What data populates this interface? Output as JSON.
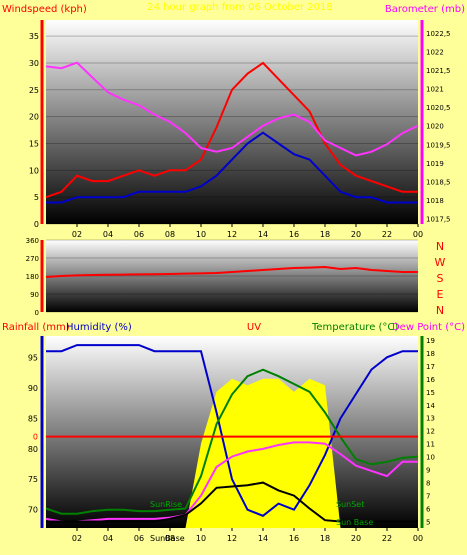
{
  "colors": {
    "background": "#ffff99",
    "red": "#ff0000",
    "blue": "#0000cc",
    "magenta": "#ff33ff",
    "green": "#008000",
    "black": "#000000",
    "yellow": "#ffff00",
    "title": "#ffff00",
    "axis_text": "#000000"
  },
  "chart_data": [
    {
      "type": "line",
      "title": "24 hour graph from 06 October 2018",
      "ylabel_left": "Windspeed (kph)",
      "ylabel_right": "Barometer (mb)",
      "x_ticks": [
        "02",
        "04",
        "06",
        "08",
        "10",
        "12",
        "14",
        "16",
        "18",
        "20",
        "22",
        "00"
      ],
      "y_ticks_left": [
        "0",
        "5",
        "10",
        "15",
        "20",
        "25",
        "30",
        "35"
      ],
      "y_ticks_right": [
        "1017,5",
        "1018",
        "1018,5",
        "1019",
        "1019,5",
        "1020",
        "1020,5",
        "1021",
        "1021,5",
        "1022",
        "1022,5"
      ],
      "xlim": [
        0,
        24
      ],
      "ylim_left": [
        0,
        38
      ],
      "ylim_right": [
        1017.35,
        1022.85
      ],
      "x": [
        0,
        1,
        2,
        3,
        4,
        5,
        6,
        7,
        8,
        9,
        10,
        11,
        12,
        13,
        14,
        15,
        16,
        17,
        18,
        19,
        20,
        21,
        22,
        23,
        24
      ],
      "series": [
        {
          "name": "Windspeed (kph)",
          "role": "gust",
          "axis": "left",
          "color": "#ff0000",
          "values": [
            5,
            6,
            9,
            8,
            8,
            9,
            10,
            9,
            10,
            10,
            12,
            18,
            25,
            28,
            30,
            27,
            24,
            21,
            15,
            11,
            9,
            8,
            7,
            6,
            6
          ]
        },
        {
          "name": "average wind",
          "role": "average",
          "axis": "left",
          "color": "#0000cc",
          "values": [
            4,
            4,
            5,
            5,
            5,
            5,
            6,
            6,
            6,
            6,
            7,
            9,
            12,
            15,
            17,
            15,
            13,
            12,
            9,
            6,
            5,
            5,
            4,
            4,
            4
          ]
        },
        {
          "name": "Barometer (mb)",
          "axis": "right",
          "color": "#ff33ff",
          "values": [
            1021.6,
            1021.55,
            1021.7,
            1021.3,
            1020.9,
            1020.7,
            1020.55,
            1020.3,
            1020.1,
            1019.8,
            1019.4,
            1019.3,
            1019.4,
            1019.7,
            1020.0,
            1020.2,
            1020.3,
            1020.1,
            1019.6,
            1019.4,
            1019.2,
            1019.3,
            1019.5,
            1019.8,
            1020.0
          ]
        }
      ]
    },
    {
      "type": "line",
      "ylabel_right_letters": [
        "N",
        "W",
        "S",
        "E",
        "N"
      ],
      "y_ticks": [
        "0",
        "90",
        "180",
        "270",
        "360"
      ],
      "xlim": [
        0,
        24
      ],
      "ylim": [
        0,
        360
      ],
      "x": [
        0,
        1,
        2,
        3,
        4,
        5,
        6,
        7,
        8,
        9,
        10,
        11,
        12,
        13,
        14,
        15,
        16,
        17,
        18,
        19,
        20,
        21,
        22,
        23,
        24
      ],
      "series": [
        {
          "name": "wind direction",
          "color": "#ff0000",
          "values": [
            175,
            180,
            183,
            185,
            186,
            187,
            188,
            189,
            190,
            192,
            193,
            195,
            200,
            205,
            210,
            215,
            220,
            222,
            225,
            215,
            220,
            210,
            205,
            200,
            200
          ]
        }
      ]
    },
    {
      "type": "line",
      "labels": {
        "rain": "Rainfall (mm)",
        "humidity": "Humidity (%)",
        "uv": "UV",
        "temperature": "Temperature (°C)",
        "dewpoint": "Dew Point (°C)"
      },
      "y_ticks_left": [
        "70",
        "75",
        "80",
        "85",
        "90",
        "95"
      ],
      "y_ticks_right": [
        "5",
        "6",
        "7",
        "8",
        "9",
        "10",
        "11",
        "12",
        "13",
        "14",
        "15",
        "16",
        "17",
        "18",
        "19"
      ],
      "rain_marker": "0",
      "annotations": [
        "SunRise",
        "SunSet",
        "Sun Base",
        "SunBase"
      ],
      "x_ticks": [
        "02",
        "04",
        "06",
        "08",
        "10",
        "12",
        "14",
        "16",
        "18",
        "20",
        "22",
        "00"
      ],
      "xlim": [
        0,
        24
      ],
      "ylim_left": [
        67,
        98.5
      ],
      "ylim_right": [
        4.5,
        19.3
      ],
      "x": [
        0,
        1,
        2,
        3,
        4,
        5,
        6,
        7,
        8,
        9,
        10,
        11,
        12,
        13,
        14,
        15,
        16,
        17,
        18,
        19,
        20,
        21,
        22,
        23,
        24
      ],
      "series": [
        {
          "name": "Humidity (%)",
          "axis": "left",
          "color": "#0000cc",
          "values": [
            96,
            96,
            97,
            97,
            97,
            97,
            97,
            96,
            96,
            96,
            96,
            86,
            75,
            70,
            69,
            71,
            70,
            74,
            79,
            85,
            89,
            93,
            95,
            96,
            96
          ]
        },
        {
          "name": "Temperature (°C)",
          "axis": "right",
          "color": "#008000",
          "values": [
            6.0,
            5.6,
            5.6,
            5.8,
            5.9,
            5.9,
            5.8,
            5.8,
            5.9,
            6.0,
            8.5,
            12.5,
            14.8,
            16.2,
            16.7,
            16.2,
            15.6,
            15.0,
            13.4,
            11.5,
            9.8,
            9.4,
            9.6,
            9.9,
            10.0
          ]
        },
        {
          "name": "Dew Point (°C)",
          "axis": "right",
          "color": "#ff33ff",
          "values": [
            5.2,
            5.0,
            5.0,
            5.1,
            5.2,
            5.2,
            5.2,
            5.2,
            5.3,
            5.5,
            7.0,
            9.2,
            10.0,
            10.4,
            10.6,
            10.9,
            11.1,
            11.1,
            11.0,
            10.2,
            9.3,
            8.9,
            8.5,
            9.6,
            9.6
          ]
        },
        {
          "name": "Solar",
          "axis": "right",
          "color": "#000000",
          "values": [
            5,
            5,
            5,
            5,
            5,
            5,
            5,
            5,
            5.2,
            5.5,
            6.4,
            7.6,
            7.7,
            7.8,
            8.0,
            7.4,
            7.0,
            6.0,
            5.1,
            5,
            5,
            5,
            5,
            5,
            5
          ]
        },
        {
          "name": "UV",
          "axis": "right",
          "color": "#ffff00",
          "fill": true,
          "values": [
            4.5,
            4.5,
            4.5,
            4.5,
            4.5,
            4.5,
            4.5,
            4.5,
            4.5,
            4.5,
            11,
            15,
            16,
            15.5,
            16,
            16,
            15,
            16,
            15.5,
            4.5,
            4.5,
            4.5,
            4.5,
            4.5,
            4.5
          ]
        },
        {
          "name": "Rainfall (mm)",
          "axis": "left",
          "color": "#ff0000",
          "values": [
            82,
            82,
            82,
            82,
            82,
            82,
            82,
            82,
            82,
            82,
            82,
            82,
            82,
            82,
            82,
            82,
            82,
            82,
            82,
            82,
            82,
            82,
            82,
            82,
            82
          ]
        }
      ]
    }
  ]
}
